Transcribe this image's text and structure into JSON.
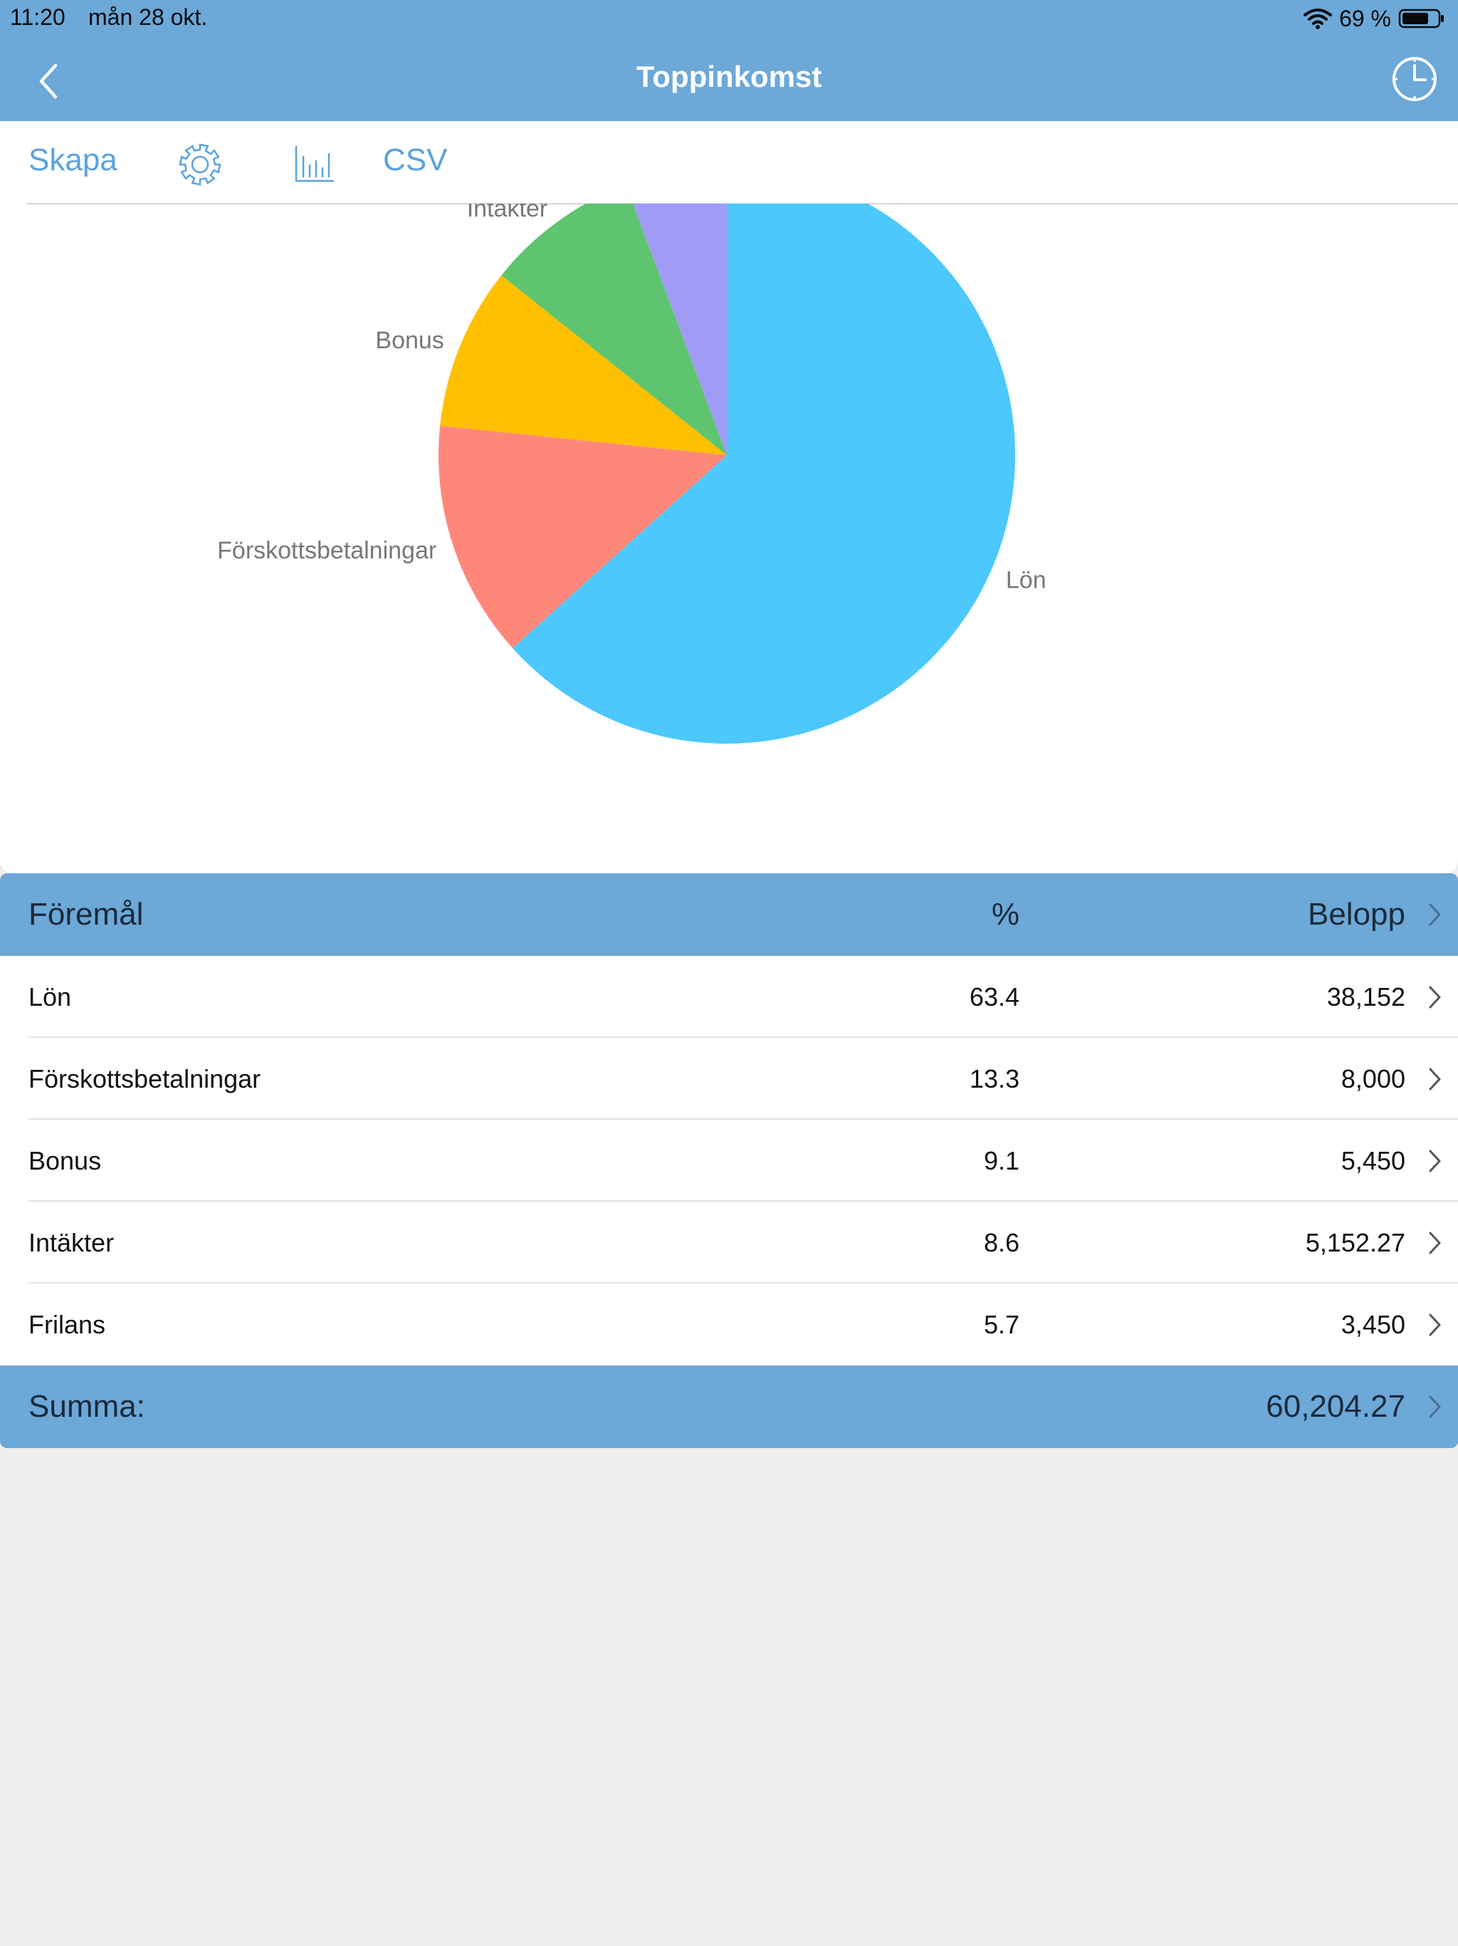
{
  "status_bar": {
    "time": "11:20",
    "date": "mån 28 okt.",
    "battery": "69 %"
  },
  "nav": {
    "title": "Toppinkomst",
    "back_icon": "chevron-left-icon",
    "history_icon": "clock-icon"
  },
  "toolbar": {
    "create_label": "Skapa",
    "settings_icon": "gear-icon",
    "chart_icon": "bar-chart-icon",
    "csv_label": "CSV"
  },
  "colors": {
    "bar": "#6ca8d8",
    "accent": "#5aa3df",
    "slices": [
      "#4cc8fd",
      "#fe877a",
      "#ffc000",
      "#5ec46f",
      "#a09cf5"
    ]
  },
  "chart_data": {
    "type": "pie",
    "categories": [
      "Lön",
      "Förskottsbetalningar",
      "Bonus",
      "Intäkter",
      "Frilans"
    ],
    "values": [
      63.4,
      13.3,
      9.1,
      8.6,
      5.7
    ]
  },
  "table": {
    "header": {
      "name": "Föremål",
      "percent": "%",
      "amount": "Belopp"
    },
    "rows": [
      {
        "name": "Lön",
        "percent": "63.4",
        "amount": "38,152"
      },
      {
        "name": "Förskottsbetalningar",
        "percent": "13.3",
        "amount": "8,000"
      },
      {
        "name": "Bonus",
        "percent": "9.1",
        "amount": "5,450"
      },
      {
        "name": "Intäkter",
        "percent": "8.6",
        "amount": "5,152.27"
      },
      {
        "name": "Frilans",
        "percent": "5.7",
        "amount": "3,450"
      }
    ],
    "footer": {
      "label": "Summa:",
      "total": "60,204.27"
    }
  }
}
